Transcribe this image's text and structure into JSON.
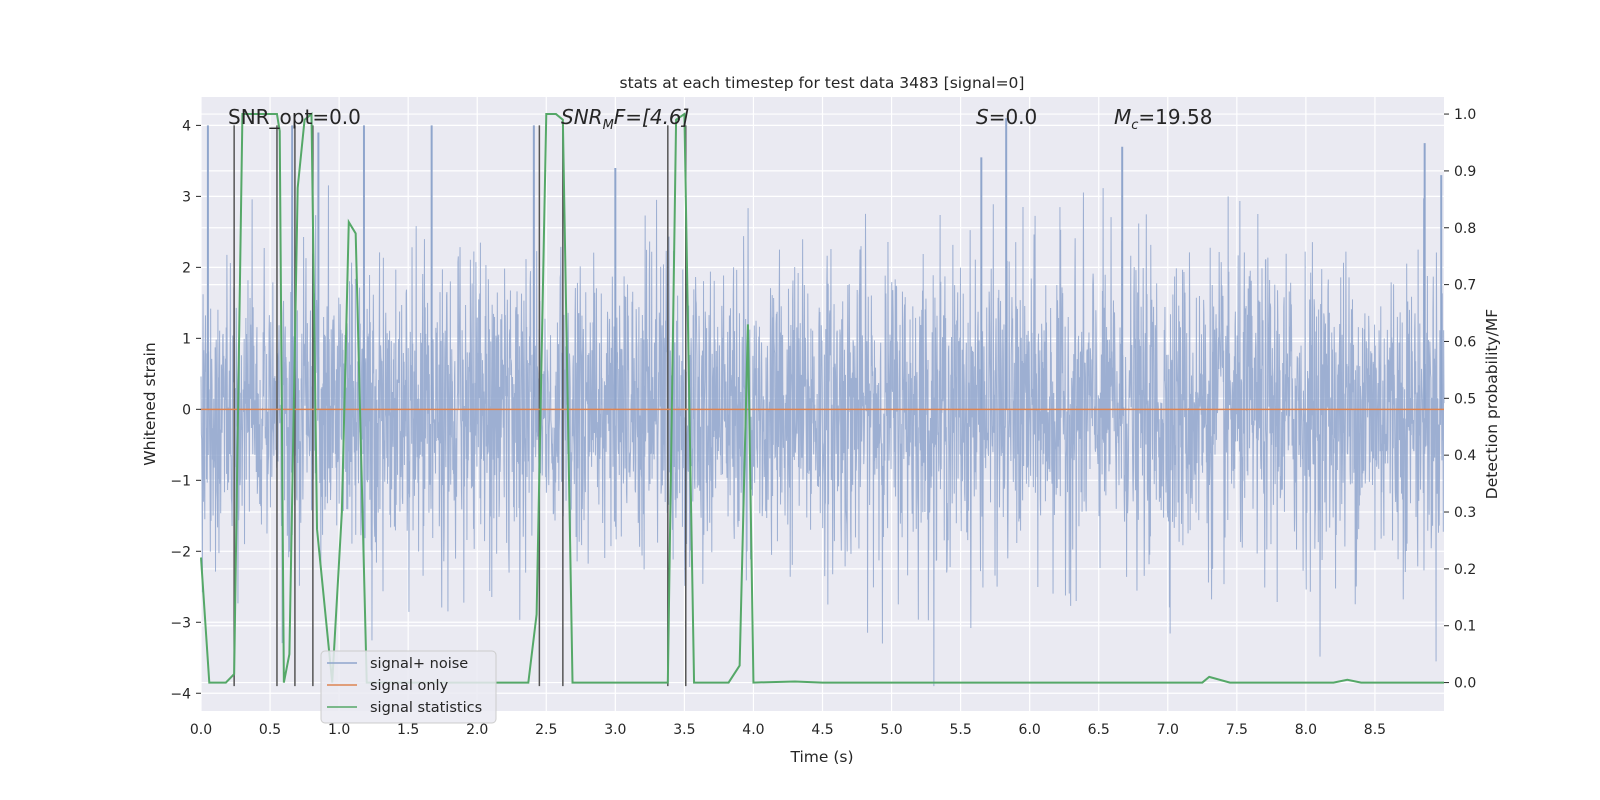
{
  "chart_data": {
    "type": "line",
    "title": "stats at each timestep for test data 3483 [signal=0]",
    "xlabel": "Time (s)",
    "ylabel": "Whitened strain",
    "y2label": "Detection probability/MF",
    "xlim": [
      0,
      9.0
    ],
    "ylim": [
      -4.25,
      4.4
    ],
    "y2lim": [
      -0.05,
      1.03
    ],
    "xticks": [
      0.0,
      0.5,
      1.0,
      1.5,
      2.0,
      2.5,
      3.0,
      3.5,
      4.0,
      4.5,
      5.0,
      5.5,
      6.0,
      6.5,
      7.0,
      7.5,
      8.0,
      8.5
    ],
    "xtick_labels": [
      "0.0",
      "0.5",
      "1.0",
      "1.5",
      "2.0",
      "2.5",
      "3.0",
      "3.5",
      "4.0",
      "4.5",
      "5.0",
      "5.5",
      "6.0",
      "6.5",
      "7.0",
      "7.5",
      "8.0",
      "8.5"
    ],
    "yticks": [
      -4,
      -3,
      -2,
      -1,
      0,
      1,
      2,
      3,
      4
    ],
    "ytick_labels": [
      "−4",
      "−3",
      "−2",
      "−1",
      "0",
      "1",
      "2",
      "3",
      "4"
    ],
    "y2ticks": [
      0.0,
      0.1,
      0.2,
      0.3,
      0.4,
      0.5,
      0.6,
      0.7,
      0.8,
      0.9,
      1.0
    ],
    "y2tick_labels": [
      "0.0",
      "0.1",
      "0.2",
      "0.3",
      "0.4",
      "0.5",
      "0.6",
      "0.7",
      "0.8",
      "0.9",
      "1.0"
    ],
    "annotations": [
      "SNR_opt=0.0",
      "SNR",
      "M",
      "F=[4.6]",
      "S",
      "=0.0",
      "M",
      "c",
      "=19.58"
    ],
    "legend": {
      "position": "lower-left",
      "entries": [
        "signal+ noise",
        "signal only",
        "signal statistics"
      ]
    },
    "series": [
      {
        "name": "signal+ noise",
        "color": "#8fa5cc",
        "kind": "dense noise, amplitude ~N(0,1), peaks to about +4 / -3.9",
        "sample_peaks": {
          "x": [
            0.05,
            0.66,
            0.85,
            1.18,
            1.67,
            2.41,
            3.0,
            5.65,
            5.83,
            6.67,
            8.86,
            8.98
          ],
          "y": [
            4.0,
            4.0,
            3.9,
            4.0,
            4.0,
            4.0,
            3.4,
            3.55,
            4.1,
            3.7,
            3.75,
            3.3
          ]
        }
      },
      {
        "name": "signal only",
        "color": "#dd8452",
        "x": [
          0.0,
          9.0
        ],
        "y": [
          0.0,
          0.0
        ]
      },
      {
        "name": "signal statistics",
        "color": "#55a868",
        "axis": "right",
        "x": [
          0.0,
          0.06,
          0.18,
          0.24,
          0.3,
          0.55,
          0.57,
          0.6,
          0.64,
          0.7,
          0.75,
          0.8,
          0.84,
          0.95,
          1.02,
          1.07,
          1.12,
          1.2,
          1.3,
          2.37,
          2.43,
          2.5,
          2.57,
          2.62,
          2.69,
          2.76,
          3.38,
          3.44,
          3.5,
          3.57,
          3.63,
          3.82,
          3.9,
          3.96,
          4.0,
          4.3,
          4.5,
          6.3,
          7.25,
          7.3,
          7.45,
          7.9,
          8.2,
          8.3,
          8.4,
          9.0
        ],
        "y": [
          0.22,
          0.0,
          0.0,
          0.015,
          1.0,
          1.0,
          0.97,
          0.0,
          0.05,
          0.87,
          0.99,
          1.0,
          0.27,
          0.0,
          0.3,
          0.81,
          0.79,
          0.0,
          0.0,
          0.0,
          0.12,
          1.0,
          1.0,
          0.99,
          0.0,
          0.0,
          0.0,
          0.99,
          1.0,
          0.0,
          0.0,
          0.0,
          0.03,
          0.63,
          0.0,
          0.002,
          0.0,
          0.0,
          0.0,
          0.01,
          0.0,
          0.0,
          0.0,
          0.005,
          0.0,
          0.0
        ]
      }
    ],
    "vertical_lines": {
      "color": "#555555",
      "x": [
        0.24,
        0.55,
        0.68,
        0.81,
        2.45,
        2.62,
        3.38,
        3.51
      ]
    }
  }
}
